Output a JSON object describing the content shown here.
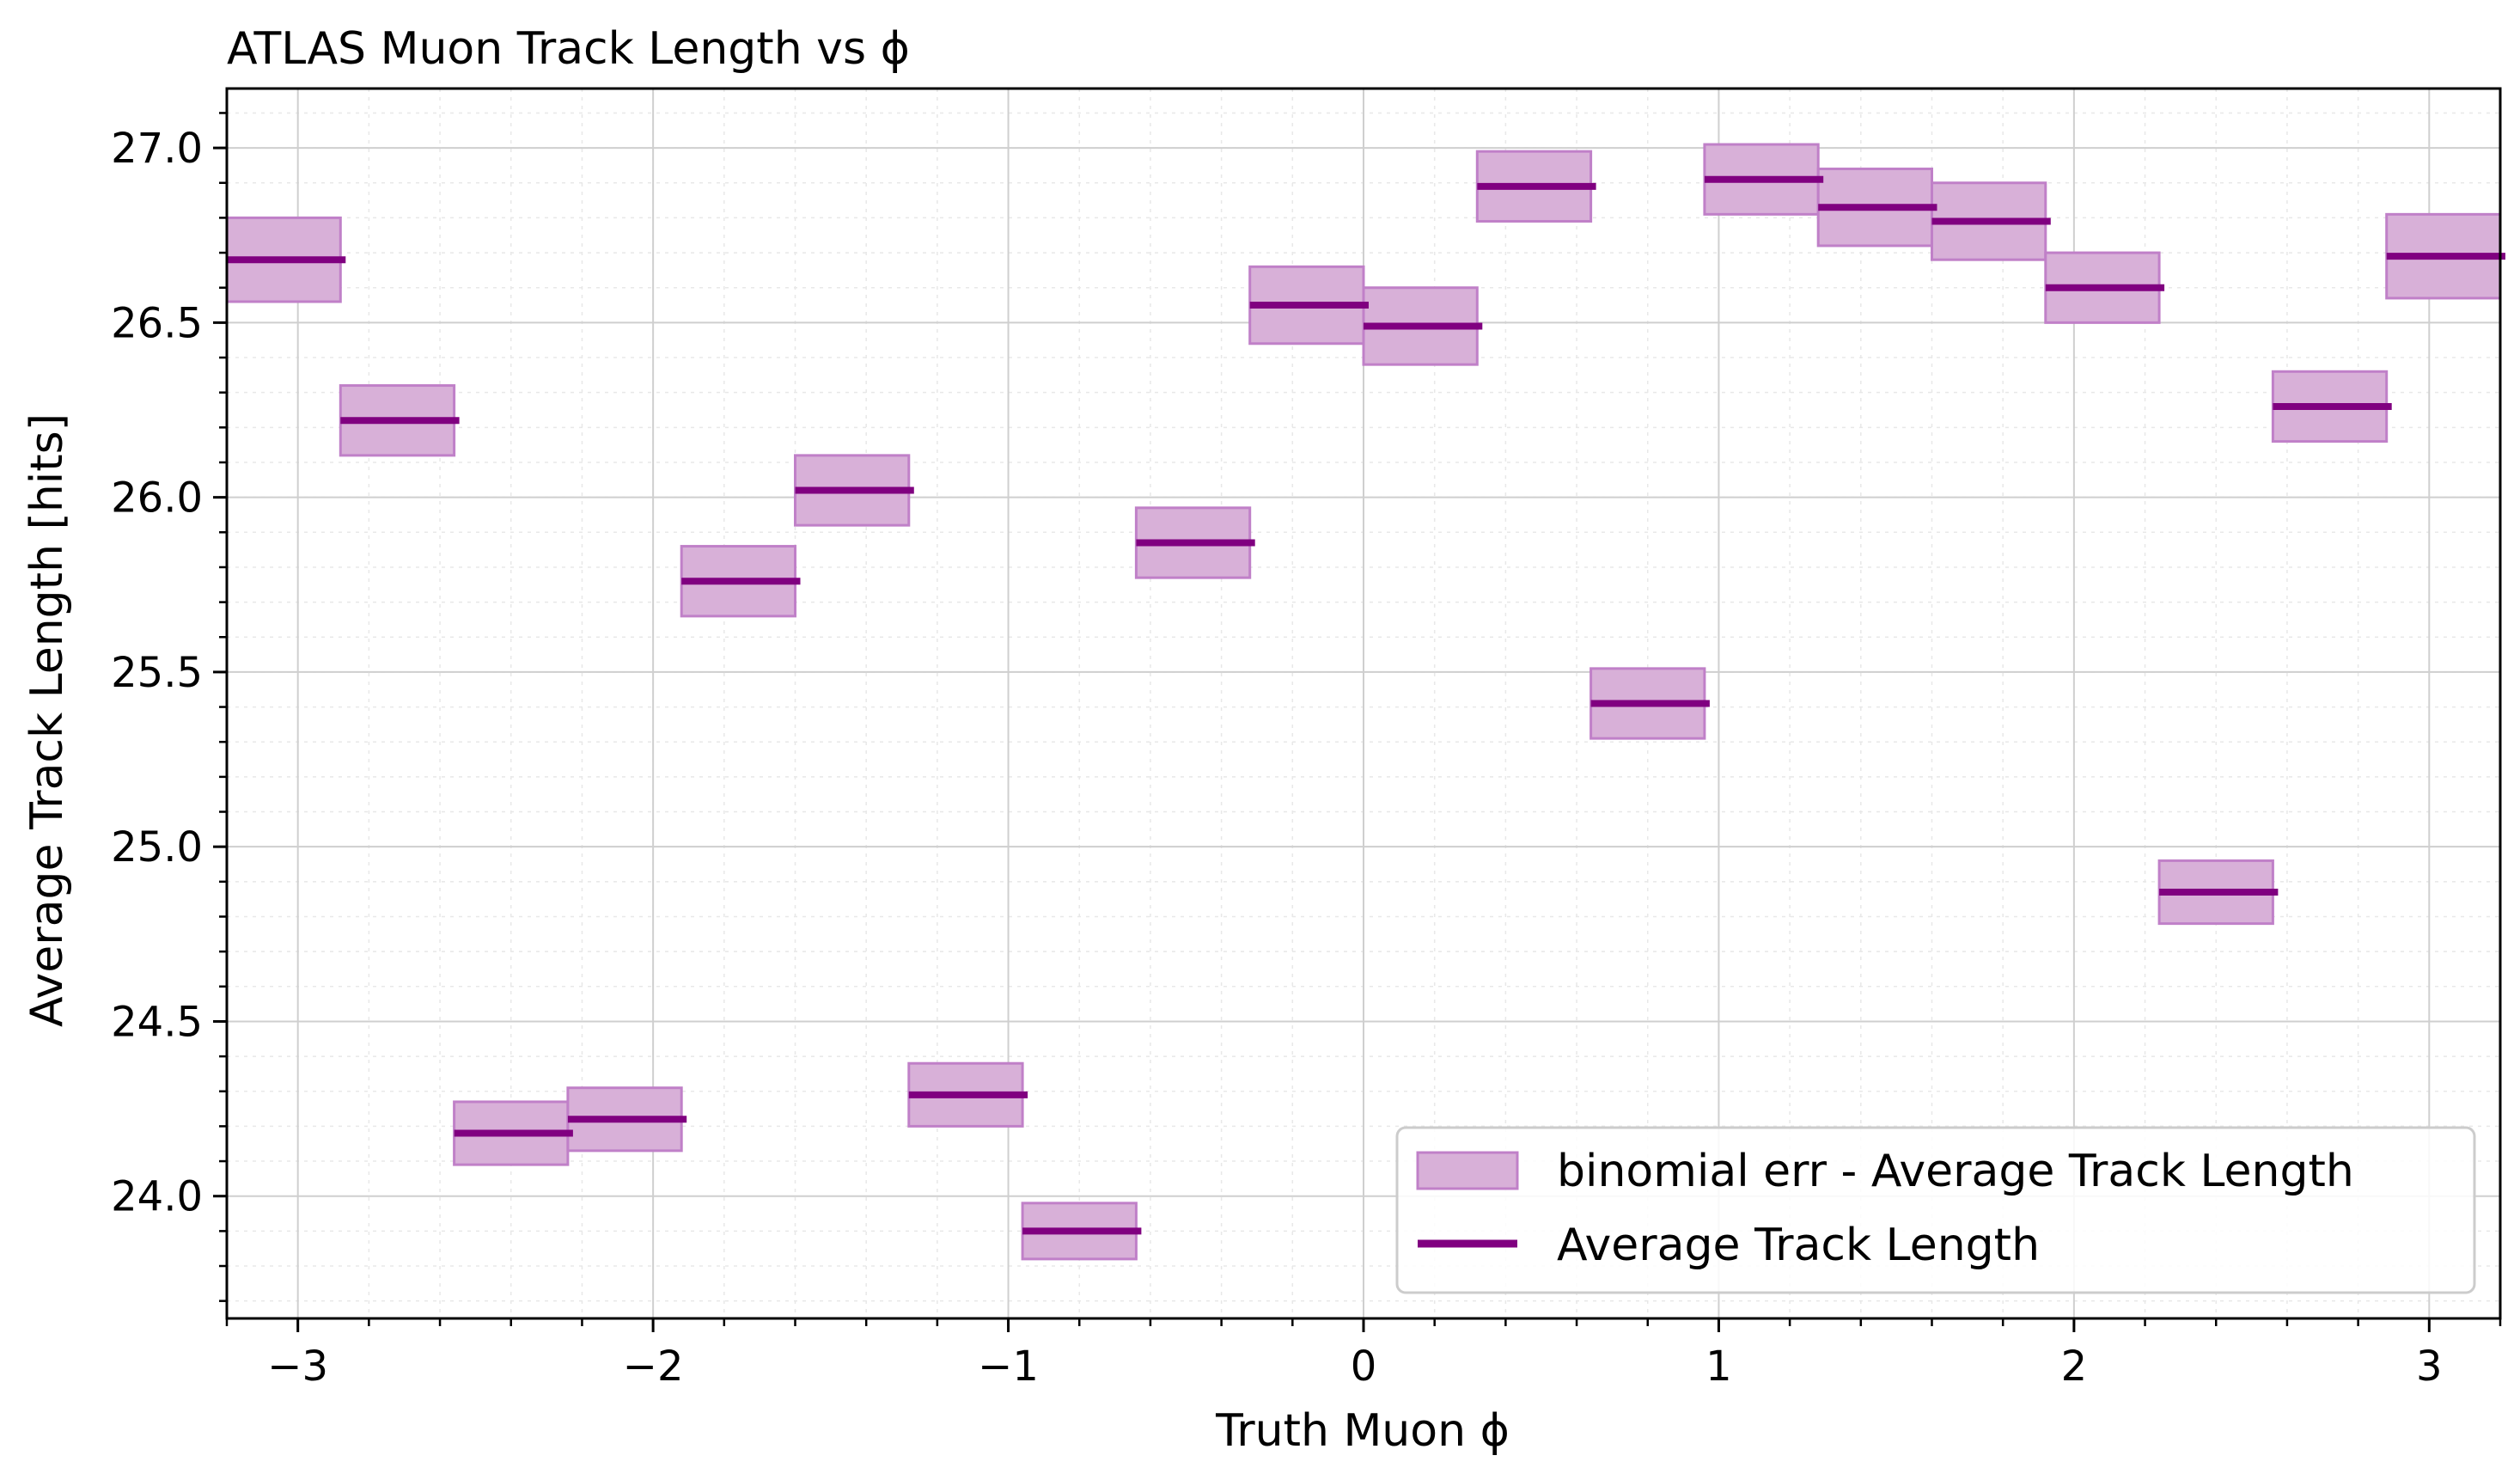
{
  "chart_data": {
    "type": "bar",
    "title": "ATLAS Muon Track Length vs ϕ",
    "xlabel": "Truth Muon ϕ",
    "ylabel": "Average Track Length [hits]",
    "xlim": [
      -3.2,
      3.2
    ],
    "ylim": [
      23.65,
      27.17
    ],
    "xticks": [
      -3,
      -2,
      -1,
      0,
      1,
      2,
      3
    ],
    "xtick_labels": [
      "−3",
      "−2",
      "−1",
      "0",
      "1",
      "2",
      "3"
    ],
    "yticks": [
      24.0,
      24.5,
      25.0,
      25.5,
      26.0,
      26.5,
      27.0
    ],
    "ytick_labels": [
      "24.0",
      "24.5",
      "25.0",
      "25.5",
      "26.0",
      "26.5",
      "27.0"
    ],
    "grid": true,
    "legend_position": "bottom-right",
    "colors": {
      "line": "#800080",
      "band": "#d8b0d8",
      "band_edge": "#c080c8"
    },
    "bins": {
      "x_low": [
        -3.2,
        -2.88,
        -2.56,
        -2.24,
        -1.92,
        -1.6,
        -1.28,
        -0.96,
        -0.64,
        -0.32,
        0.0,
        0.32,
        0.64,
        0.96,
        1.28,
        1.6,
        1.92,
        2.24,
        2.56,
        2.88
      ],
      "x_high": [
        -2.88,
        -2.56,
        -2.24,
        -1.92,
        -1.6,
        -1.28,
        -0.96,
        -0.64,
        -0.32,
        0.0,
        0.32,
        0.64,
        0.96,
        1.28,
        1.6,
        1.92,
        2.24,
        2.56,
        2.88,
        3.2
      ],
      "values": [
        26.68,
        26.22,
        24.18,
        24.22,
        25.76,
        26.02,
        24.29,
        23.9,
        25.87,
        26.55,
        26.49,
        26.89,
        25.41,
        26.91,
        26.83,
        26.79,
        26.6,
        24.87,
        26.26,
        26.69
      ],
      "err": [
        0.12,
        0.1,
        0.09,
        0.09,
        0.1,
        0.1,
        0.09,
        0.08,
        0.1,
        0.11,
        0.11,
        0.1,
        0.1,
        0.1,
        0.11,
        0.11,
        0.1,
        0.09,
        0.1,
        0.12
      ]
    },
    "series": [
      {
        "name": "binomial err - Average Track Length"
      },
      {
        "name": "Average Track Length"
      }
    ]
  }
}
